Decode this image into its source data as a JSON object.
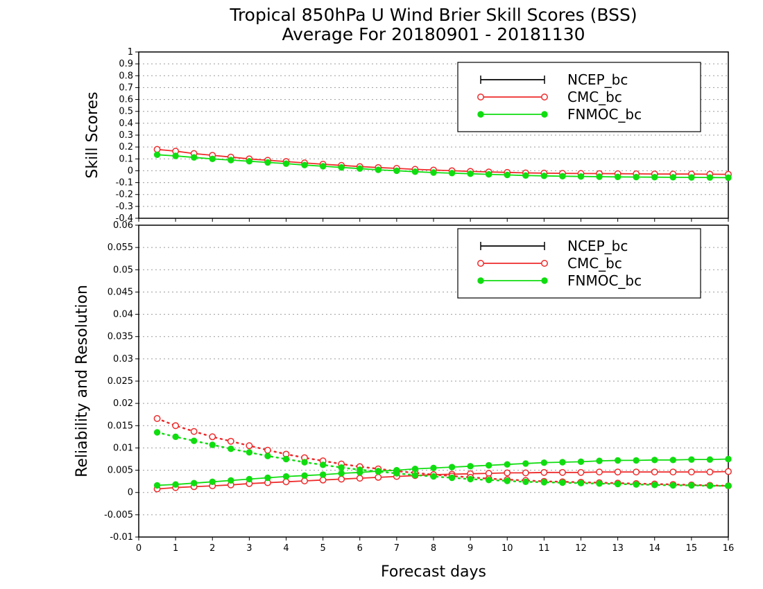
{
  "page": {
    "title_line1": "Tropical 850hPa U Wind Brier Skill Scores (BSS)",
    "title_line2": "Average For 20180901 - 20181130",
    "xlabel": "Forecast days"
  },
  "colors": {
    "NCEP_bc": "#000000",
    "CMC_bc": "#ee2a2a",
    "FNMOC_bc": "#10dd10"
  },
  "chart_data": [
    {
      "type": "line",
      "ylabel": "Skill Scores",
      "ylim": [
        -0.4,
        1
      ],
      "yticks": [
        "-0.4",
        "-0.3",
        "-0.2",
        "-0.1",
        "0",
        "0.1",
        "0.2",
        "0.3",
        "0.4",
        "0.5",
        "0.6",
        "0.7",
        "0.8",
        "0.9",
        "1"
      ],
      "xlim": [
        0,
        16
      ],
      "xticks": [
        "0",
        "1",
        "2",
        "3",
        "4",
        "5",
        "6",
        "7",
        "8",
        "9",
        "10",
        "11",
        "12",
        "13",
        "14",
        "15",
        "16"
      ],
      "grid": true,
      "legend": [
        "NCEP_bc",
        "CMC_bc",
        "FNMOC_bc"
      ],
      "x": [
        0.5,
        1,
        1.5,
        2,
        2.5,
        3,
        3.5,
        4,
        4.5,
        5,
        5.5,
        6,
        6.5,
        7,
        7.5,
        8,
        8.5,
        9,
        9.5,
        10,
        10.5,
        11,
        11.5,
        12,
        12.5,
        13,
        13.5,
        14,
        14.5,
        15,
        15.5,
        16
      ],
      "series": [
        {
          "name": "CMC_bc",
          "marker": "open-circle",
          "style": "solid",
          "values": [
            0.18,
            0.165,
            0.145,
            0.13,
            0.115,
            0.1,
            0.088,
            0.078,
            0.066,
            0.055,
            0.045,
            0.035,
            0.027,
            0.02,
            0.012,
            0.006,
            0.0,
            -0.005,
            -0.01,
            -0.014,
            -0.018,
            -0.02,
            -0.022,
            -0.023,
            -0.024,
            -0.025,
            -0.026,
            -0.027,
            -0.028,
            -0.028,
            -0.029,
            -0.03
          ]
        },
        {
          "name": "FNMOC_bc",
          "marker": "filled-circle",
          "style": "solid",
          "values": [
            0.135,
            0.125,
            0.112,
            0.1,
            0.09,
            0.08,
            0.07,
            0.06,
            0.048,
            0.038,
            0.028,
            0.018,
            0.008,
            0.0,
            -0.008,
            -0.015,
            -0.02,
            -0.025,
            -0.03,
            -0.035,
            -0.04,
            -0.043,
            -0.046,
            -0.048,
            -0.05,
            -0.052,
            -0.053,
            -0.054,
            -0.055,
            -0.056,
            -0.057,
            -0.058
          ]
        }
      ]
    },
    {
      "type": "line",
      "ylabel": "Reliability and Resolution",
      "ylim": [
        -0.01,
        0.06
      ],
      "yticks": [
        "-0.01",
        "-0.005",
        "0",
        "0.005",
        "0.01",
        "0.015",
        "0.02",
        "0.025",
        "0.03",
        "0.035",
        "0.04",
        "0.045",
        "0.05",
        "0.055",
        "0.06"
      ],
      "xlim": [
        0,
        16
      ],
      "xticks": [
        "0",
        "1",
        "2",
        "3",
        "4",
        "5",
        "6",
        "7",
        "8",
        "9",
        "10",
        "11",
        "12",
        "13",
        "14",
        "15",
        "16"
      ],
      "grid": true,
      "legend": [
        "NCEP_bc",
        "CMC_bc",
        "FNMOC_bc"
      ],
      "x": [
        0.5,
        1,
        1.5,
        2,
        2.5,
        3,
        3.5,
        4,
        4.5,
        5,
        5.5,
        6,
        6.5,
        7,
        7.5,
        8,
        8.5,
        9,
        9.5,
        10,
        10.5,
        11,
        11.5,
        12,
        12.5,
        13,
        13.5,
        14,
        14.5,
        15,
        15.5,
        16
      ],
      "series": [
        {
          "name": "CMC_bc",
          "role": "resolution",
          "marker": "open-circle",
          "style": "solid",
          "values": [
            0.0008,
            0.0011,
            0.0013,
            0.0015,
            0.0017,
            0.002,
            0.0022,
            0.0024,
            0.0026,
            0.0028,
            0.003,
            0.0032,
            0.0034,
            0.0036,
            0.0038,
            0.004,
            0.0041,
            0.0042,
            0.0043,
            0.0044,
            0.0044,
            0.0045,
            0.0045,
            0.0045,
            0.0046,
            0.0046,
            0.0046,
            0.0046,
            0.0046,
            0.0046,
            0.0046,
            0.0047
          ]
        },
        {
          "name": "CMC_bc",
          "role": "reliability",
          "marker": "open-circle",
          "style": "dotted",
          "values": [
            0.0166,
            0.015,
            0.0137,
            0.0125,
            0.0115,
            0.0105,
            0.0095,
            0.0086,
            0.0078,
            0.0071,
            0.0064,
            0.0058,
            0.0053,
            0.0048,
            0.0044,
            0.004,
            0.0037,
            0.0034,
            0.0031,
            0.0029,
            0.0027,
            0.0025,
            0.0024,
            0.0023,
            0.0022,
            0.0021,
            0.002,
            0.0019,
            0.0018,
            0.0017,
            0.0016,
            0.0015
          ]
        },
        {
          "name": "FNMOC_bc",
          "role": "resolution",
          "marker": "filled-circle",
          "style": "solid",
          "values": [
            0.0016,
            0.0018,
            0.0021,
            0.0024,
            0.0027,
            0.003,
            0.0033,
            0.0036,
            0.0038,
            0.004,
            0.0043,
            0.0045,
            0.0048,
            0.005,
            0.0053,
            0.0055,
            0.0057,
            0.0059,
            0.0061,
            0.0063,
            0.0065,
            0.0067,
            0.0068,
            0.0069,
            0.0071,
            0.0072,
            0.0072,
            0.0073,
            0.0073,
            0.0074,
            0.0074,
            0.0075
          ]
        },
        {
          "name": "FNMOC_bc",
          "role": "reliability",
          "marker": "filled-circle",
          "style": "dotted",
          "values": [
            0.0135,
            0.0125,
            0.0116,
            0.0107,
            0.0098,
            0.009,
            0.0082,
            0.0075,
            0.0068,
            0.0062,
            0.0056,
            0.0051,
            0.0047,
            0.0043,
            0.0039,
            0.0036,
            0.0033,
            0.003,
            0.0028,
            0.0026,
            0.0024,
            0.0023,
            0.0022,
            0.0021,
            0.002,
            0.0019,
            0.0018,
            0.0017,
            0.0016,
            0.0016,
            0.0015,
            0.0015
          ]
        }
      ]
    }
  ]
}
